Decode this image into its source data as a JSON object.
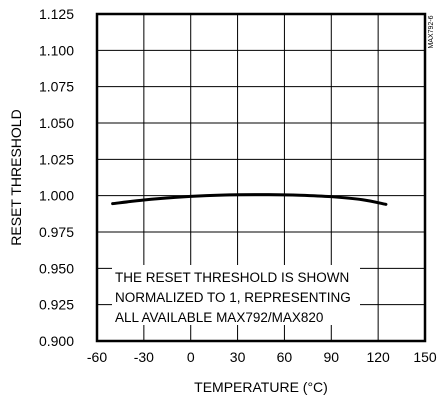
{
  "figure_code": "MAX792-6",
  "note_lines": [
    "THE RESET THRESHOLD IS SHOWN",
    "NORMALIZED TO 1, REPRESENTING",
    "ALL AVAILABLE MAX792/MAX820"
  ],
  "chart_data": {
    "type": "line",
    "title": "",
    "xlabel": "TEMPERATURE (°C)",
    "ylabel": "RESET THRESHOLD",
    "xlim": [
      -60,
      150
    ],
    "ylim": [
      0.9,
      1.125
    ],
    "x_ticks": [
      "-60",
      "-30",
      "0",
      "30",
      "60",
      "90",
      "120",
      "150"
    ],
    "y_ticks": [
      "1.125",
      "1.100",
      "1.075",
      "1.050",
      "1.025",
      "1.000",
      "0.975",
      "0.950",
      "0.925",
      "0.900"
    ],
    "grid": true,
    "series": [
      {
        "x": [
          -50,
          -30,
          -10,
          10,
          30,
          50,
          70,
          90,
          110,
          125
        ],
        "y": [
          0.9945,
          0.997,
          0.9988,
          1.0,
          1.0006,
          1.0007,
          1.0003,
          0.9993,
          0.9972,
          0.994
        ]
      }
    ]
  }
}
